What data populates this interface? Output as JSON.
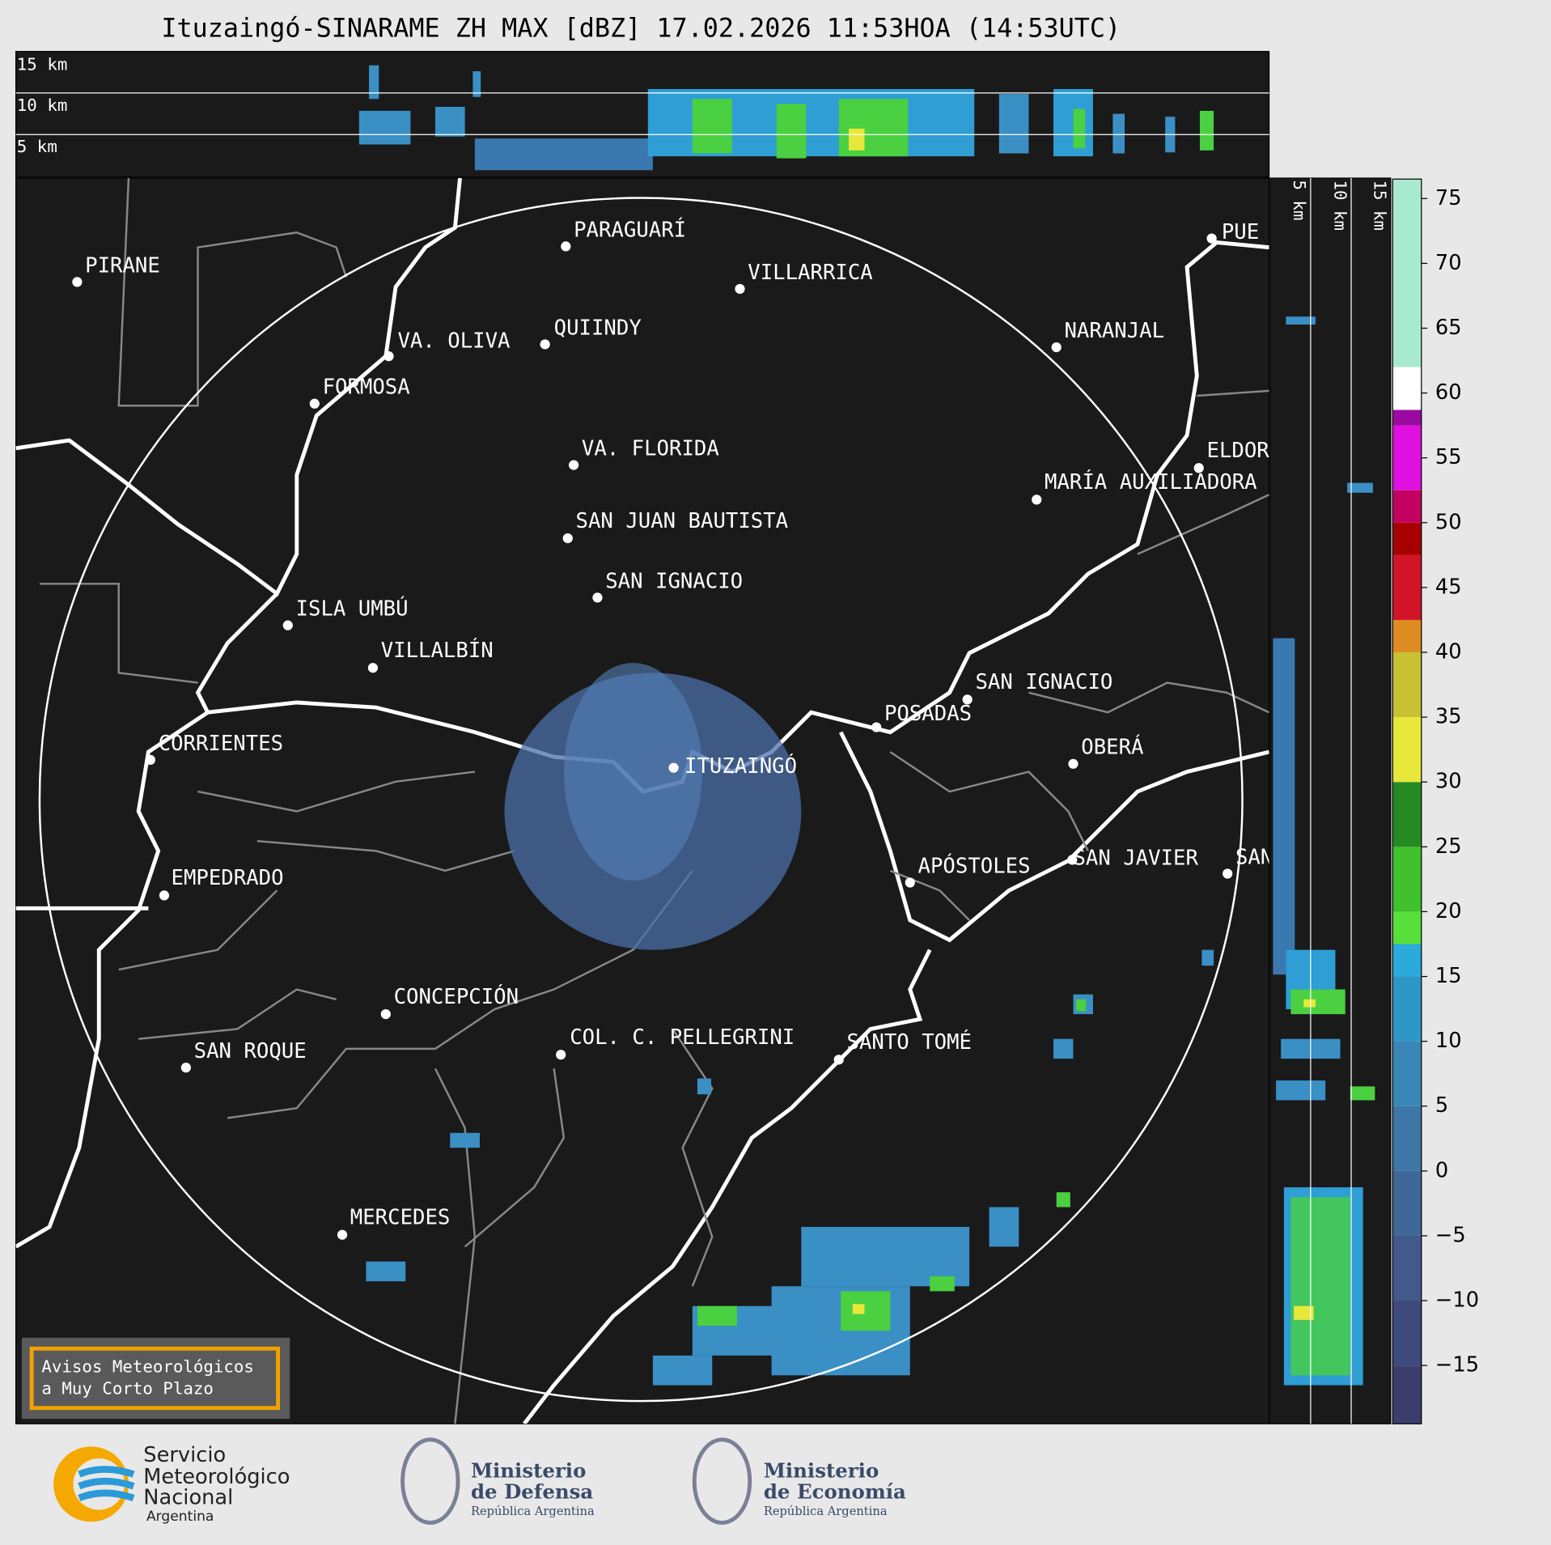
{
  "title": "Ituzaingó-SINARAME ZH MAX [dBZ] 17.02.2026 11:53HOA (14:53UTC)",
  "profile": {
    "levels": [
      "15 km",
      "10 km",
      "5 km"
    ]
  },
  "side_profile": {
    "levels": [
      "5 km",
      "10 km",
      "15 km"
    ]
  },
  "map": {
    "places": [
      {
        "name": "PIRANE"
      },
      {
        "name": "PARAGUARÍ"
      },
      {
        "name": "VILLARRICA"
      },
      {
        "name": "QUIINDY"
      },
      {
        "name": "VA. OLIVA"
      },
      {
        "name": "FORMOSA"
      },
      {
        "name": "VA. FLORIDA"
      },
      {
        "name": "SAN JUAN BAUTISTA"
      },
      {
        "name": "SAN IGNACIO"
      },
      {
        "name": "ISLA UMBÚ"
      },
      {
        "name": "VILLALBÍN"
      },
      {
        "name": "CORRIENTES"
      },
      {
        "name": "ITUZAINGÓ"
      },
      {
        "name": "EMPEDRADO"
      },
      {
        "name": "CONCEPCIÓN"
      },
      {
        "name": "COL. C. PELLEGRINI"
      },
      {
        "name": "SAN ROQUE"
      },
      {
        "name": "MERCEDES"
      },
      {
        "name": "SANTO TOMÉ"
      },
      {
        "name": "APÓSTOLES"
      },
      {
        "name": "SAN JAVIER"
      },
      {
        "name": "SAN"
      },
      {
        "name": "POSADAS"
      },
      {
        "name": "SAN IGNACIO"
      },
      {
        "name": "OBERÁ"
      },
      {
        "name": "NARANJAL"
      },
      {
        "name": "MARÍA AUXILIADORA"
      },
      {
        "name": "ELDORADO"
      },
      {
        "name": "PUE"
      }
    ]
  },
  "colorbar": {
    "range": [
      -19.5,
      76.5
    ],
    "ticks": [
      75,
      70,
      65,
      60,
      55,
      50,
      45,
      40,
      35,
      30,
      25,
      20,
      15,
      10,
      5,
      0,
      {
        "value": -5,
        "label": "−5"
      },
      {
        "value": -10,
        "label": "−10"
      },
      {
        "value": -15,
        "label": "−15"
      }
    ],
    "bands": [
      {
        "from": -19.5,
        "color": "#3b3d6c"
      },
      {
        "from": -15,
        "color": "#3e4a7d"
      },
      {
        "from": -10,
        "color": "#41598b"
      },
      {
        "from": -5,
        "color": "#3f6898"
      },
      {
        "from": 0,
        "color": "#3c77a7"
      },
      {
        "from": 5,
        "color": "#3887b8"
      },
      {
        "from": 10,
        "color": "#2f97c8"
      },
      {
        "from": 15,
        "color": "#2aabdc"
      },
      {
        "from": 17.5,
        "color": "#58e03a"
      },
      {
        "from": 20,
        "color": "#3fc22e"
      },
      {
        "from": 25,
        "color": "#268a22"
      },
      {
        "from": 30,
        "color": "#e8e83a"
      },
      {
        "from": 35,
        "color": "#c6c232"
      },
      {
        "from": 40,
        "color": "#de8c22"
      },
      {
        "from": 42.5,
        "color": "#d21428"
      },
      {
        "from": 47.5,
        "color": "#a80000"
      },
      {
        "from": 50,
        "color": "#c40060"
      },
      {
        "from": 52.5,
        "color": "#e010e0"
      },
      {
        "from": 57.5,
        "color": "#9a0aa0"
      },
      {
        "from": 58.7,
        "color": "#ffffff"
      },
      {
        "from": 62,
        "color": "#a8ead0"
      }
    ]
  },
  "notice": {
    "lines": [
      "Avisos Meteorológicos",
      "a Muy Corto Plazo"
    ]
  },
  "logos": [
    {
      "lines": [
        "Servicio",
        "Meteorológico",
        "Nacional",
        "Argentina"
      ]
    },
    {
      "lines": [
        "Ministerio",
        "de Defensa",
        "República Argentina"
      ]
    },
    {
      "lines": [
        "Ministerio",
        "de Economía",
        "República Argentina"
      ]
    }
  ]
}
